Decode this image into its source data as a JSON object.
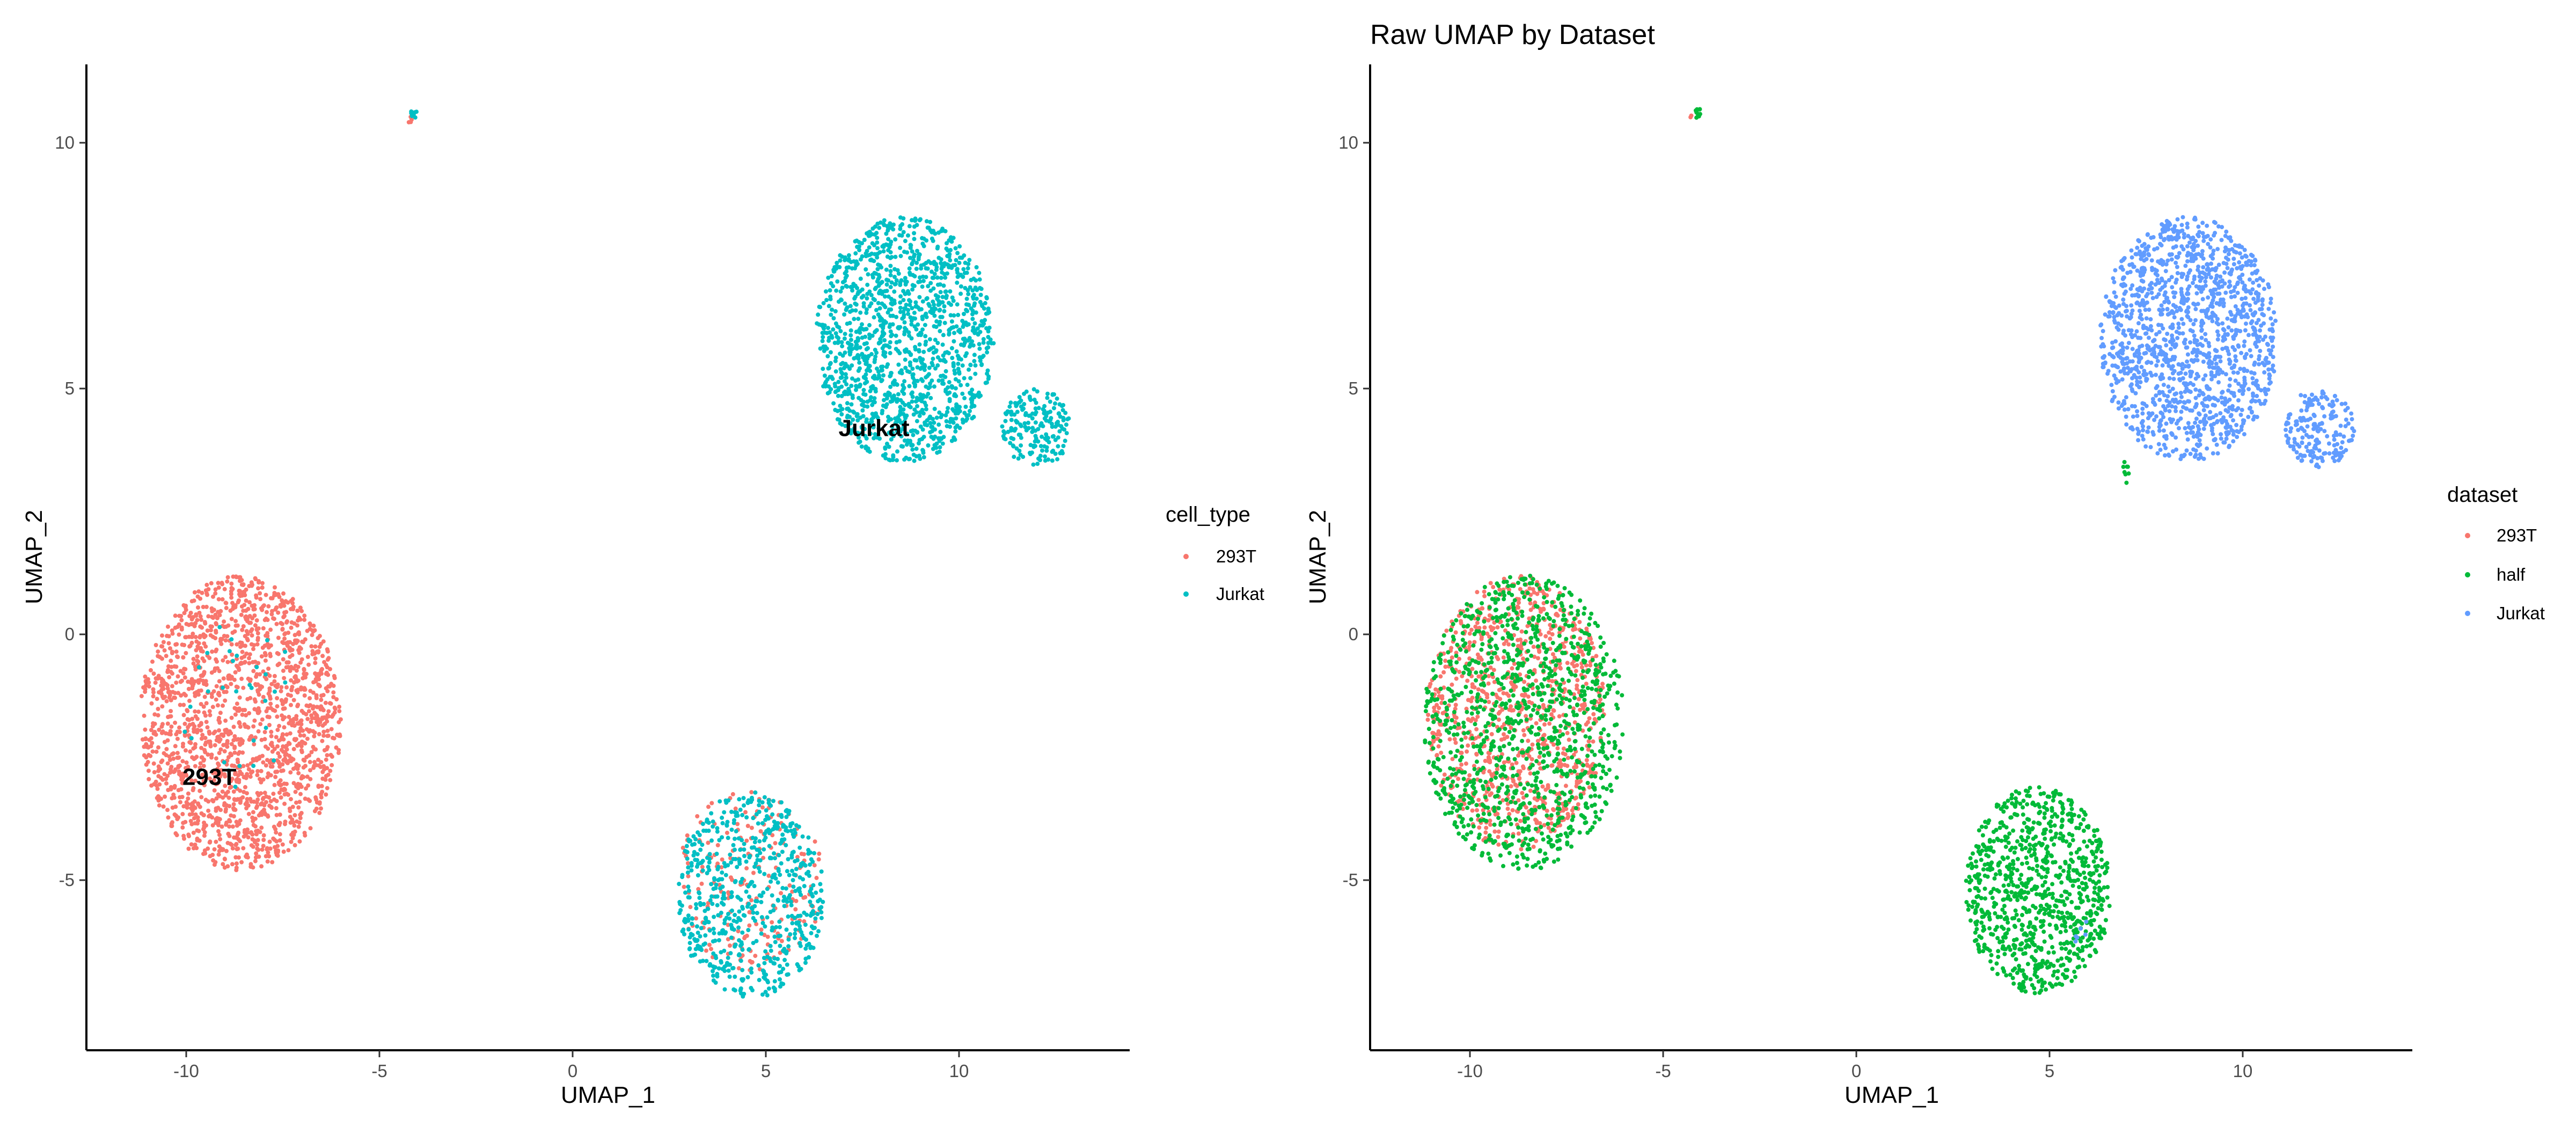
{
  "chart_data": [
    {
      "type": "scatter",
      "title": "",
      "xlabel": "UMAP_1",
      "ylabel": "UMAP_2",
      "xlim": [
        -12.5,
        14.5
      ],
      "ylim": [
        -8.3,
        11.6
      ],
      "x_ticks": [
        -10,
        -5,
        0,
        5,
        10
      ],
      "y_ticks": [
        -5,
        0,
        5,
        10
      ],
      "grid": false,
      "legend": {
        "title": "cell_type",
        "position": "right",
        "entries": [
          "293T",
          "Jurkat"
        ]
      },
      "colors": {
        "293T": "#F8766D",
        "Jurkat": "#00BFC4"
      },
      "cluster_labels": [
        {
          "text": "293T",
          "x": -9.4,
          "y": -2.9
        },
        {
          "text": "Jurkat",
          "x": 7.8,
          "y": 4.2
        }
      ],
      "series": [
        {
          "name": "293T",
          "clusters": [
            {
              "cx": -8.6,
              "cy": -1.8,
              "rx": 2.6,
              "ry": 3.0,
              "n": 1800
            },
            {
              "cx": 4.6,
              "cy": -5.0,
              "rx": 1.9,
              "ry": 1.9,
              "n": 200
            },
            {
              "cx": -4.2,
              "cy": 10.5,
              "rx": 0.1,
              "ry": 0.1,
              "n": 4
            }
          ]
        },
        {
          "name": "Jurkat",
          "clusters": [
            {
              "cx": 8.6,
              "cy": 6.0,
              "rx": 2.3,
              "ry": 2.5,
              "n": 1400
            },
            {
              "cx": 12.0,
              "cy": 4.2,
              "rx": 0.9,
              "ry": 0.8,
              "n": 180
            },
            {
              "cx": 4.6,
              "cy": -5.3,
              "rx": 1.9,
              "ry": 2.1,
              "n": 650
            },
            {
              "cx": -8.6,
              "cy": -1.5,
              "rx": 1.5,
              "ry": 1.8,
              "n": 30
            },
            {
              "cx": -4.1,
              "cy": 10.6,
              "rx": 0.1,
              "ry": 0.1,
              "n": 10
            }
          ]
        }
      ]
    },
    {
      "type": "scatter",
      "title": "Raw UMAP by Dataset",
      "xlabel": "UMAP_1",
      "ylabel": "UMAP_2",
      "xlim": [
        -12.5,
        14.5
      ],
      "ylim": [
        -8.3,
        11.6
      ],
      "x_ticks": [
        -10,
        -5,
        0,
        5,
        10
      ],
      "y_ticks": [
        -5,
        0,
        5,
        10
      ],
      "grid": false,
      "legend": {
        "title": "dataset",
        "position": "right",
        "entries": [
          "293T",
          "half",
          "Jurkat"
        ]
      },
      "colors": {
        "293T": "#F8766D",
        "half": "#00BA38",
        "Jurkat": "#619CFF"
      },
      "cluster_labels": [],
      "series": [
        {
          "name": "293T",
          "clusters": [
            {
              "cx": -8.8,
              "cy": -1.6,
              "rx": 2.3,
              "ry": 2.8,
              "n": 900
            },
            {
              "cx": -4.2,
              "cy": 10.5,
              "rx": 0.1,
              "ry": 0.1,
              "n": 2
            }
          ]
        },
        {
          "name": "half",
          "clusters": [
            {
              "cx": -8.6,
              "cy": -1.8,
              "rx": 2.6,
              "ry": 3.0,
              "n": 1100
            },
            {
              "cx": 4.7,
              "cy": -5.2,
              "rx": 1.9,
              "ry": 2.1,
              "n": 900
            },
            {
              "cx": -4.1,
              "cy": 10.6,
              "rx": 0.1,
              "ry": 0.1,
              "n": 12
            },
            {
              "cx": 7.0,
              "cy": 3.3,
              "rx": 0.1,
              "ry": 0.3,
              "n": 8
            }
          ]
        },
        {
          "name": "Jurkat",
          "clusters": [
            {
              "cx": 8.6,
              "cy": 6.0,
              "rx": 2.3,
              "ry": 2.5,
              "n": 1400
            },
            {
              "cx": 12.0,
              "cy": 4.2,
              "rx": 0.9,
              "ry": 0.8,
              "n": 180
            },
            {
              "cx": 6.0,
              "cy": -6.2,
              "rx": 0.4,
              "ry": 0.4,
              "n": 6
            }
          ]
        }
      ]
    }
  ]
}
